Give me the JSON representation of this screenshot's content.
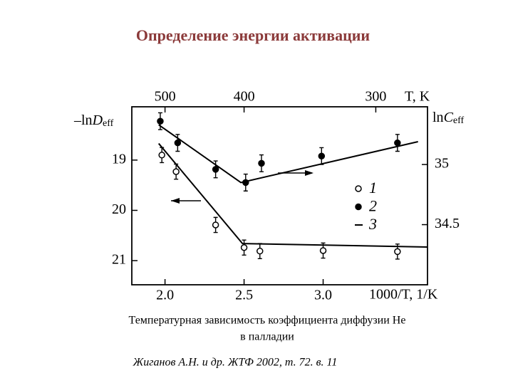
{
  "title": "Определение энергии активации",
  "caption": [
    "Температурная зависимость коэффициента диффузии He",
    "в палладии"
  ],
  "reference": "Жиганов А.Н. и др. ЖТФ 2002, т. 72. в. 11",
  "chart_data": {
    "type": "scatter",
    "x_label": "1000/T, 1/K",
    "x2_label": "T, K",
    "y_label": {
      "main": "–ln",
      "var": "D",
      "sub": "eff"
    },
    "y2_label": {
      "main": "ln",
      "var": "C",
      "sub": "eff"
    },
    "xlim": [
      1.79,
      3.66
    ],
    "xticks": [
      {
        "value": 2,
        "label": "2.0"
      },
      2.5,
      {
        "value": 3,
        "label": "3.0"
      }
    ],
    "x2ticks": [
      {
        "value": 2,
        "label": "500"
      },
      {
        "value": 2.5,
        "label": "400"
      },
      {
        "value": 3.333,
        "label": "300"
      }
    ],
    "ylim": [
      21.48,
      17.94
    ],
    "yticks": [
      19,
      20,
      21
    ],
    "y2lim": [
      34.0,
      35.48
    ],
    "y2ticks": [
      35,
      34.5
    ],
    "series": [
      {
        "name": "1",
        "marker": "open",
        "axis": "y",
        "color": "#000000",
        "x": [
          1.98,
          2.07,
          2.32,
          2.5,
          2.6,
          3.0,
          3.47
        ],
        "values": [
          18.9,
          19.23,
          20.29,
          20.74,
          20.81,
          20.8,
          20.82
        ],
        "errors": [
          0.15,
          0.15,
          0.15,
          0.15,
          0.15,
          0.15,
          0.15
        ]
      },
      {
        "name": "2",
        "marker": "filled",
        "axis": "y2",
        "color": "#000000",
        "x": [
          1.97,
          2.08,
          2.32,
          2.51,
          2.61,
          2.99,
          3.47
        ],
        "values": [
          35.36,
          35.18,
          34.96,
          34.85,
          35.01,
          35.07,
          35.18
        ],
        "errors": [
          0.07,
          0.07,
          0.07,
          0.07,
          0.07,
          0.07,
          0.07
        ]
      },
      {
        "name": "3",
        "marker": "line",
        "color": "#000000",
        "segments": [
          {
            "axis": "y",
            "x": [
              1.96,
              2.49,
              3.66
            ],
            "values": [
              18.67,
              20.66,
              20.73
            ]
          },
          {
            "axis": "y2",
            "x": [
              1.96,
              2.48,
              3.6
            ],
            "values": [
              35.33,
              34.85,
              35.19
            ]
          }
        ]
      }
    ]
  }
}
